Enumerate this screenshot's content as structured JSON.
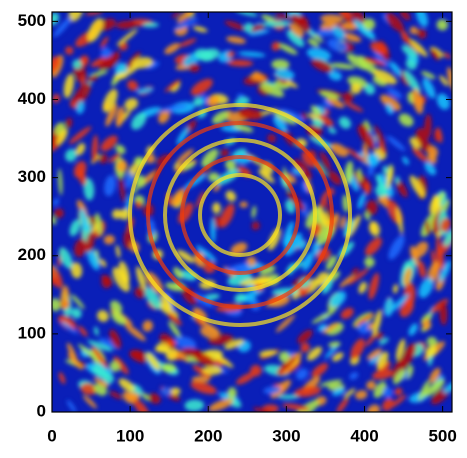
{
  "chart_data": {
    "type": "image",
    "xlim": [
      0,
      512
    ],
    "ylim": [
      0,
      512
    ],
    "xticks": [
      0,
      100,
      200,
      300,
      400,
      500
    ],
    "yticks": [
      0,
      100,
      200,
      300,
      400,
      500
    ]
  }
}
